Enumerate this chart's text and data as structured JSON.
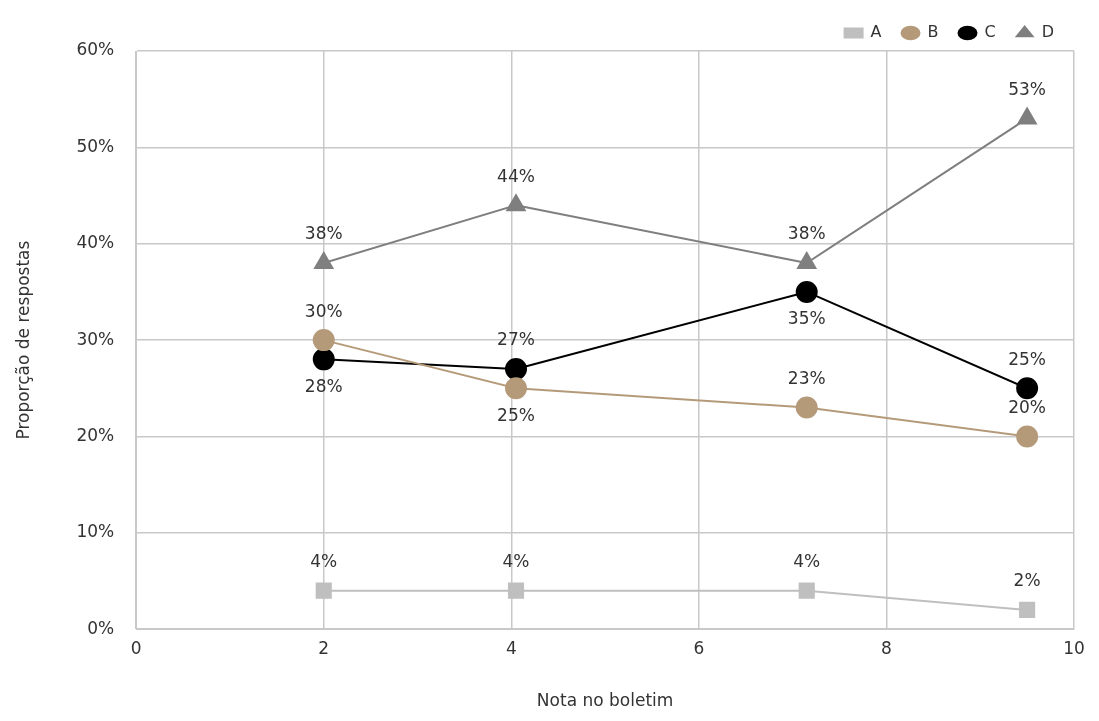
{
  "chart_data": {
    "type": "line",
    "xlabel": "Nota no boletim",
    "ylabel": "Proporção de respostas",
    "x": [
      2,
      4.05,
      7.15,
      9.5
    ],
    "series": [
      {
        "name": "A",
        "color": "#bfbfbf",
        "marker": "square",
        "values": [
          4,
          4,
          4,
          2
        ],
        "value_labels": [
          "4%",
          "4%",
          "4%",
          "2%"
        ]
      },
      {
        "name": "B",
        "color": "#b59a7a",
        "marker": "circle",
        "values": [
          30,
          25,
          23,
          20
        ],
        "value_labels": [
          "30%",
          "25%",
          "23%",
          "20%"
        ]
      },
      {
        "name": "C",
        "color": "#000000",
        "marker": "circle",
        "values": [
          28,
          27,
          35,
          25
        ],
        "value_labels": [
          "28%",
          "27%",
          "35%",
          "25%"
        ]
      },
      {
        "name": "D",
        "color": "#7f7f7f",
        "marker": "triangle",
        "values": [
          38,
          44,
          38,
          53
        ],
        "value_labels": [
          "38%",
          "44%",
          "38%",
          "53%"
        ]
      }
    ],
    "xlim": [
      0,
      10
    ],
    "xticks": [
      0,
      2,
      4,
      6,
      8,
      10
    ],
    "ylim": [
      0,
      60
    ],
    "yticks": [
      {
        "value": 0,
        "label": "0%"
      },
      {
        "value": 10,
        "label": "10%"
      },
      {
        "value": 20,
        "label": "20%"
      },
      {
        "value": 30,
        "label": "30%"
      },
      {
        "value": 40,
        "label": "40%"
      },
      {
        "value": 50,
        "label": "50%"
      },
      {
        "value": 60,
        "label": "60%"
      }
    ],
    "grid": true,
    "legend": "top right"
  }
}
